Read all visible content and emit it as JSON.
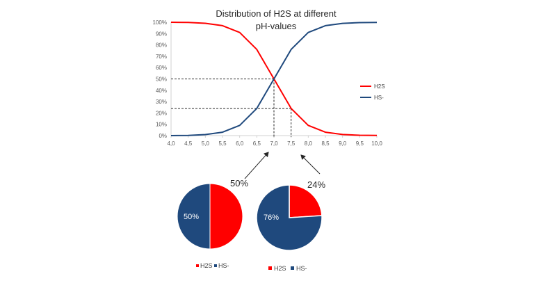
{
  "chart_data": [
    {
      "type": "line",
      "title_lines": [
        "Distribution of H2S at different",
        "pH-values"
      ],
      "x": [
        4.0,
        4.5,
        5.0,
        5.5,
        6.0,
        6.5,
        7.0,
        7.5,
        8.0,
        8.5,
        9.0,
        9.5,
        10.0
      ],
      "x_tick_labels": [
        "4,0",
        "4,5",
        "5,0",
        "5,5",
        "6,0",
        "6,5",
        "7,0",
        "7,5",
        "8,0",
        "8,5",
        "9,0",
        "9,5",
        "10,0"
      ],
      "y_tick_labels": [
        "0%",
        "10%",
        "20%",
        "30%",
        "40%",
        "50%",
        "60%",
        "70%",
        "80%",
        "90%",
        "100%"
      ],
      "ylim": [
        0,
        100
      ],
      "xlim": [
        4.0,
        10.0
      ],
      "series": [
        {
          "name": "H2S",
          "color": "#ff0000",
          "values": [
            100,
            99.9,
            99.1,
            97,
            91,
            76,
            50,
            24,
            9,
            3,
            1,
            0.3,
            0.1
          ]
        },
        {
          "name": "HS-",
          "color": "#1f497d",
          "values": [
            0,
            0.1,
            0.9,
            3,
            9,
            24,
            50,
            76,
            91,
            97,
            99,
            99.7,
            99.9
          ]
        }
      ],
      "reference_lines": [
        {
          "x": 7.0,
          "y": 50
        },
        {
          "x": 7.5,
          "y": 24
        }
      ],
      "legend_position": "right",
      "grid": false
    },
    {
      "type": "pie",
      "callout_label": "50%",
      "slices": [
        {
          "name": "H2S",
          "value": 50,
          "color": "#ff0000"
        },
        {
          "name": "HS-",
          "value": 50,
          "color": "#1f497d"
        }
      ],
      "inner_label": "50%",
      "legend": [
        "H2S",
        "HS-"
      ]
    },
    {
      "type": "pie",
      "callout_label": "24%",
      "slices": [
        {
          "name": "H2S",
          "value": 24,
          "color": "#ff0000"
        },
        {
          "name": "HS-",
          "value": 76,
          "color": "#1f497d"
        }
      ],
      "inner_label": "76%",
      "legend": [
        "H2S",
        "HS-"
      ]
    }
  ]
}
